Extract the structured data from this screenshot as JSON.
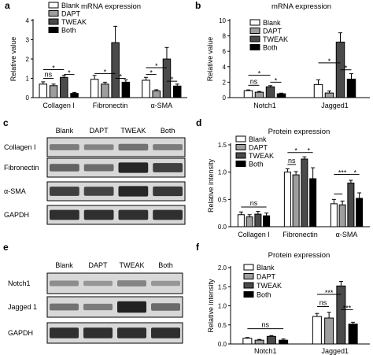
{
  "panel_labels": {
    "a": "a",
    "b": "b",
    "c": "c",
    "d": "d",
    "e": "e",
    "f": "f"
  },
  "legend_names": [
    "Blank",
    "DAPT",
    "TWEAK",
    "Both"
  ],
  "legend_fills": [
    "#ffffff",
    "#9e9e9e",
    "#4a4a4a",
    "#000000"
  ],
  "chart_data": [
    {
      "id": "a",
      "type": "bar",
      "title": "mRNA expression",
      "ylabel": "Relative value",
      "ylim": [
        0,
        4
      ],
      "yticks": [
        "0",
        "1",
        "2",
        "3",
        "4"
      ],
      "categories": [
        "Collagen I",
        "Fibronectin",
        "α-SMA"
      ],
      "series": [
        {
          "name": "Blank",
          "values": [
            0.7,
            0.95,
            0.9
          ],
          "errors": [
            0.12,
            0.2,
            0.15
          ]
        },
        {
          "name": "DAPT",
          "values": [
            0.62,
            0.7,
            0.35
          ],
          "errors": [
            0.08,
            0.1,
            0.06
          ]
        },
        {
          "name": "TWEAK",
          "values": [
            1.05,
            2.85,
            2.0
          ],
          "errors": [
            0.1,
            0.85,
            0.6
          ]
        },
        {
          "name": "Both",
          "values": [
            0.22,
            0.8,
            0.6
          ],
          "errors": [
            0.05,
            0.12,
            0.1
          ]
        }
      ],
      "annotations": [
        {
          "text": "ns",
          "from": [
            0,
            0
          ],
          "to": [
            0,
            1
          ],
          "y": 1.0
        },
        {
          "text": "*",
          "from": [
            0,
            0
          ],
          "to": [
            0,
            2
          ],
          "y": 1.45
        },
        {
          "text": "*",
          "from": [
            0,
            2
          ],
          "to": [
            0,
            3
          ],
          "y": 1.2
        },
        {
          "text": "*",
          "from": [
            1,
            0
          ],
          "to": [
            1,
            2
          ],
          "y": 1.25
        },
        {
          "text": "*",
          "from": [
            1,
            2
          ],
          "to": [
            1,
            3
          ],
          "y": 1.0
        },
        {
          "text": "*",
          "from": [
            2,
            0
          ],
          "to": [
            2,
            1
          ],
          "y": 1.2
        },
        {
          "text": "*",
          "from": [
            2,
            0
          ],
          "to": [
            2,
            2
          ],
          "y": 1.55
        },
        {
          "text": "*",
          "from": [
            2,
            2
          ],
          "to": [
            2,
            3
          ],
          "y": 0.85
        }
      ]
    },
    {
      "id": "b",
      "type": "bar",
      "title": "mRNA expression",
      "ylabel": "Relative value",
      "ylim": [
        0,
        10
      ],
      "yticks": [
        "0",
        "2",
        "4",
        "6",
        "8",
        "10"
      ],
      "categories": [
        "Notch1",
        "Jagged1"
      ],
      "series": [
        {
          "name": "Blank",
          "values": [
            0.9,
            1.7
          ],
          "errors": [
            0.1,
            0.6
          ]
        },
        {
          "name": "DAPT",
          "values": [
            0.7,
            0.6
          ],
          "errors": [
            0.1,
            0.25
          ]
        },
        {
          "name": "TWEAK",
          "values": [
            1.4,
            7.2
          ],
          "errors": [
            0.15,
            1.2
          ]
        },
        {
          "name": "Both",
          "values": [
            0.5,
            2.4
          ],
          "errors": [
            0.08,
            0.7
          ]
        }
      ],
      "annotations": [
        {
          "text": "ns",
          "from": [
            0,
            0
          ],
          "to": [
            0,
            1
          ],
          "y": 1.6
        },
        {
          "text": "*",
          "from": [
            0,
            0
          ],
          "to": [
            0,
            2
          ],
          "y": 2.9
        },
        {
          "text": "*",
          "from": [
            0,
            2
          ],
          "to": [
            0,
            3
          ],
          "y": 2.0
        },
        {
          "text": "*",
          "from": [
            1,
            0
          ],
          "to": [
            1,
            2
          ],
          "y": 4.5
        },
        {
          "text": "*",
          "from": [
            1,
            2
          ],
          "to": [
            1,
            3
          ],
          "y": 3.6
        }
      ]
    },
    {
      "id": "d",
      "type": "bar",
      "title": "Protein expression",
      "ylabel": "Relative intensity",
      "ylim": [
        0,
        1.5
      ],
      "yticks": [
        "0.0",
        "0.5",
        "1.0",
        "1.5"
      ],
      "categories": [
        "Collagen I",
        "Fibronectin",
        "α-SMA"
      ],
      "series": [
        {
          "name": "Blank",
          "values": [
            0.22,
            1.0,
            0.42
          ],
          "errors": [
            0.05,
            0.06,
            0.08
          ]
        },
        {
          "name": "DAPT",
          "values": [
            0.18,
            0.95,
            0.4
          ],
          "errors": [
            0.04,
            0.06,
            0.07
          ]
        },
        {
          "name": "TWEAK",
          "values": [
            0.23,
            1.24,
            0.8
          ],
          "errors": [
            0.05,
            0.04,
            0.05
          ]
        },
        {
          "name": "Both",
          "values": [
            0.2,
            0.88,
            0.52
          ],
          "errors": [
            0.05,
            0.2,
            0.1
          ]
        }
      ],
      "annotations": [
        {
          "text": "ns",
          "from": [
            0,
            0
          ],
          "to": [
            0,
            3
          ],
          "y": 0.36
        },
        {
          "text": "ns",
          "from": [
            1,
            0
          ],
          "to": [
            1,
            1
          ],
          "y": 1.14
        },
        {
          "text": "*",
          "from": [
            1,
            0
          ],
          "to": [
            1,
            2
          ],
          "y": 1.36
        },
        {
          "text": "*",
          "from": [
            1,
            2
          ],
          "to": [
            1,
            3
          ],
          "y": 1.36
        },
        {
          "text": "",
          "from": [
            2,
            0
          ],
          "to": [
            2,
            1
          ],
          "y": 0.6
        },
        {
          "text": "***",
          "from": [
            2,
            0
          ],
          "to": [
            2,
            2
          ],
          "y": 0.96
        },
        {
          "text": "*",
          "from": [
            2,
            2
          ],
          "to": [
            2,
            3
          ],
          "y": 0.96
        }
      ]
    },
    {
      "id": "f",
      "type": "bar",
      "title": "Protein expression",
      "ylabel": "Relative intensity",
      "ylim": [
        0,
        2.0
      ],
      "yticks": [
        "0.0",
        "0.5",
        "1.0",
        "1.5",
        "2.0"
      ],
      "categories": [
        "Notch1",
        "Jagged1"
      ],
      "series": [
        {
          "name": "Blank",
          "values": [
            0.15,
            0.72
          ],
          "errors": [
            0.02,
            0.08
          ]
        },
        {
          "name": "DAPT",
          "values": [
            0.1,
            0.68
          ],
          "errors": [
            0.02,
            0.15
          ]
        },
        {
          "name": "TWEAK",
          "values": [
            0.2,
            1.52
          ],
          "errors": [
            0.02,
            0.12
          ]
        },
        {
          "name": "Both",
          "values": [
            0.1,
            0.52
          ],
          "errors": [
            0.03,
            0.05
          ]
        }
      ],
      "annotations": [
        {
          "text": "ns",
          "from": [
            0,
            0
          ],
          "to": [
            0,
            3
          ],
          "y": 0.4
        },
        {
          "text": "ns",
          "from": [
            1,
            0
          ],
          "to": [
            1,
            1
          ],
          "y": 0.98
        },
        {
          "text": "***",
          "from": [
            1,
            0
          ],
          "to": [
            1,
            2
          ],
          "y": 1.3
        },
        {
          "text": "***",
          "from": [
            1,
            2
          ],
          "to": [
            1,
            3
          ],
          "y": 0.9
        }
      ]
    }
  ],
  "blots": {
    "c": {
      "lanes": [
        "Blank",
        "DAPT",
        "TWEAK",
        "Both"
      ],
      "rows": [
        {
          "label": "Collagen I",
          "intensity": [
            0.45,
            0.4,
            0.5,
            0.45
          ]
        },
        {
          "label": "Fibronectin",
          "intensity": [
            0.6,
            0.55,
            0.95,
            0.8
          ]
        },
        {
          "label": "α-SMA",
          "intensity": [
            0.8,
            0.78,
            0.95,
            0.85
          ]
        },
        {
          "label": "GAPDH",
          "intensity": [
            0.9,
            0.9,
            0.9,
            0.9
          ]
        }
      ]
    },
    "e": {
      "lanes": [
        "Blank",
        "DAPT",
        "TWEAK",
        "Both"
      ],
      "rows": [
        {
          "label": "Notch1",
          "intensity": [
            0.35,
            0.3,
            0.4,
            0.3
          ]
        },
        {
          "label": "Jagged 1",
          "intensity": [
            0.5,
            0.45,
            0.98,
            0.55
          ]
        },
        {
          "label": "GAPDH",
          "intensity": [
            0.9,
            0.9,
            0.9,
            0.9
          ]
        }
      ]
    }
  }
}
